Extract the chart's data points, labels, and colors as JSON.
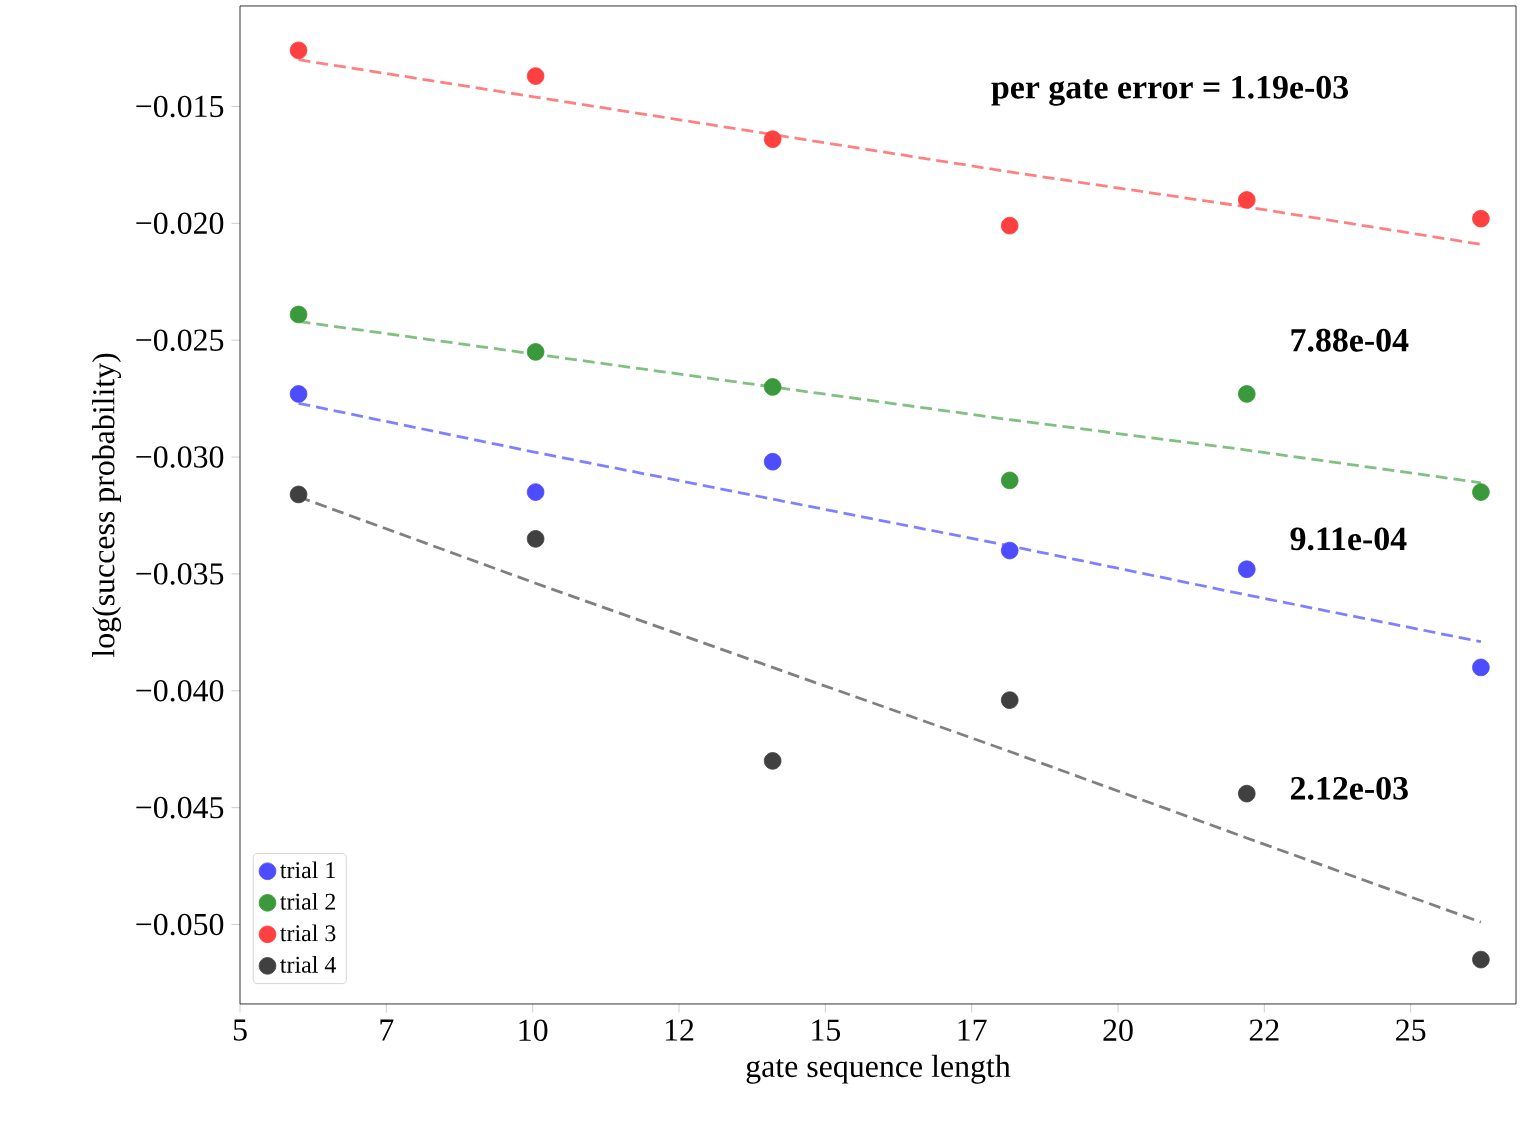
{
  "chart_data": {
    "type": "scatter",
    "xlabel": "gate sequence length",
    "ylabel": "log(success probability)",
    "xlim": [
      5,
      26.8
    ],
    "ylim": [
      -0.0534,
      -0.0107
    ],
    "xticks": [
      5,
      {
        "value": 7.5,
        "label": "7"
      },
      10,
      {
        "value": 12.5,
        "label": "12"
      },
      15,
      {
        "value": 17.5,
        "label": "17"
      },
      20,
      {
        "value": 22.5,
        "label": "22"
      },
      25
    ],
    "yticks": [
      {
        "value": -0.015,
        "label": "−0.015"
      },
      {
        "value": -0.02,
        "label": "−0.020"
      },
      {
        "value": -0.025,
        "label": "−0.025"
      },
      {
        "value": -0.03,
        "label": "−0.030"
      },
      {
        "value": -0.035,
        "label": "−0.035"
      },
      {
        "value": -0.04,
        "label": "−0.040"
      },
      {
        "value": -0.045,
        "label": "−0.045"
      },
      {
        "value": -0.05,
        "label": "−0.050"
      }
    ],
    "grid": false,
    "legend": "bottom left",
    "marker": "circle",
    "x": [
      6.0,
      10.05,
      14.1,
      18.15,
      22.2,
      26.2
    ],
    "series": [
      {
        "name": "trial 1",
        "color": "#4d4dff",
        "values": [
          -0.0273,
          -0.0315,
          -0.0302,
          -0.034,
          -0.0348,
          -0.039
        ]
      },
      {
        "name": "trial 2",
        "color": "#3a993a",
        "values": [
          -0.0239,
          -0.0255,
          -0.027,
          -0.031,
          -0.0273,
          -0.0315
        ]
      },
      {
        "name": "trial 3",
        "color": "#ff4040",
        "values": [
          -0.0126,
          -0.0137,
          -0.0164,
          -0.0201,
          -0.019,
          -0.0198
        ]
      },
      {
        "name": "trial 4",
        "color": "#404040",
        "values": [
          -0.0316,
          -0.0335,
          -0.043,
          -0.0404,
          -0.0444,
          -0.0515
        ]
      },
      {
        "type": "line",
        "line_style": "dashed",
        "marker": "none",
        "color": "#8080ff",
        "values": [
          -0.0277,
          -0.0298,
          -0.0318,
          -0.0338,
          -0.0359,
          -0.0379
        ]
      },
      {
        "type": "line",
        "line_style": "dashed",
        "marker": "none",
        "color": "#80c080",
        "values": [
          -0.0242,
          -0.0256,
          -0.027,
          -0.0284,
          -0.0297,
          -0.0311
        ]
      },
      {
        "type": "line",
        "line_style": "dashed",
        "marker": "none",
        "color": "#ff8080",
        "values": [
          -0.013,
          -0.0146,
          -0.0162,
          -0.0178,
          -0.0193,
          -0.0209
        ]
      },
      {
        "type": "line",
        "line_style": "dashed",
        "marker": "none",
        "color": "#808080",
        "values": [
          -0.0317,
          -0.0354,
          -0.039,
          -0.0426,
          -0.0463,
          -0.0499
        ]
      }
    ],
    "annotations": [
      "per gate error = 1.19e-03",
      "7.88e-04",
      "9.11e-04",
      "2.12e-03"
    ]
  }
}
